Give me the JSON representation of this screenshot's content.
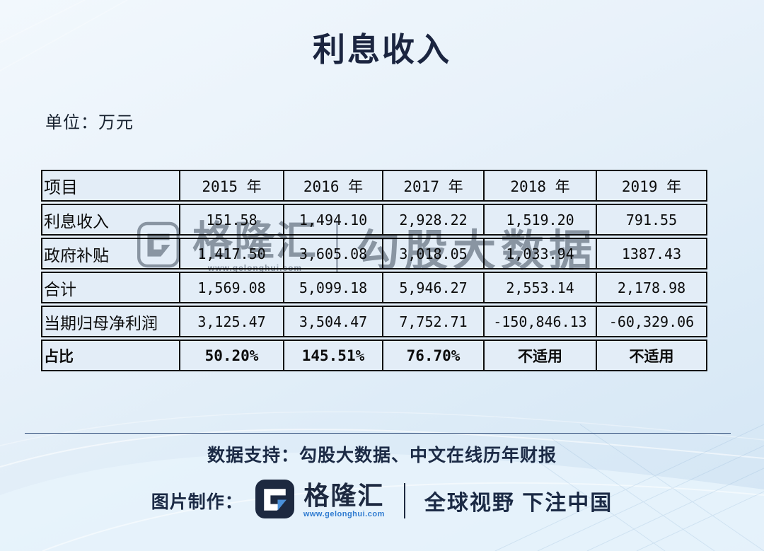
{
  "page": {
    "title": "利息收入",
    "unit_label": "单位：万元"
  },
  "table": {
    "columns": [
      "项目",
      "2015 年",
      "2016 年",
      "2017 年",
      "2018 年",
      "2019 年"
    ],
    "rows": [
      {
        "label": "利息收入",
        "values": [
          "151.58",
          "1,494.10",
          "2,928.22",
          "1,519.20",
          "791.55"
        ],
        "bold": false
      },
      {
        "label": "政府补贴",
        "values": [
          "1,417.50",
          "3,605.08",
          "3,018.05",
          "1,033.94",
          "1387.43"
        ],
        "bold": false
      },
      {
        "label": "合计",
        "values": [
          "1,569.08",
          "5,099.18",
          "5,946.27",
          "2,553.14",
          "2,178.98"
        ],
        "bold": false
      },
      {
        "label": "当期归母净利润",
        "values": [
          "3,125.47",
          "3,504.47",
          "7,752.71",
          "-150,846.13",
          "-60,329.06"
        ],
        "bold": false
      },
      {
        "label": "占比",
        "values": [
          "50.20%",
          "145.51%",
          "76.70%",
          "不适用",
          "不适用"
        ],
        "bold": true
      }
    ]
  },
  "watermark": {
    "brand": "格隆汇",
    "url": "www.gelonghui.com",
    "suffix": "勾股大数据"
  },
  "footer": {
    "data_support": "数据支持：勾股大数据、中文在线历年财报",
    "credit_label": "图片制作：",
    "brand": "格隆汇",
    "brand_url": "www.gelonghui.com",
    "slogan": "全球视野 下注中国"
  },
  "colors": {
    "navy": "#1d2940",
    "link_blue": "#2f7bd0",
    "cell_fill": "#e3edf7",
    "table_border": "#0e0e0e",
    "watermark_gray": "#9aa0a7"
  }
}
